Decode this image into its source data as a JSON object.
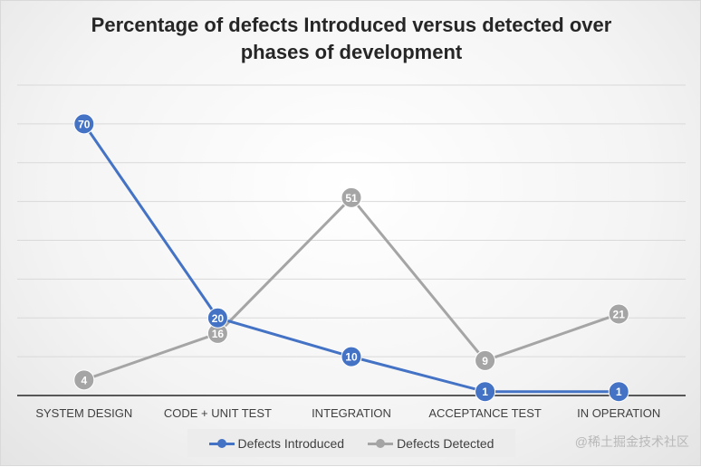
{
  "chart_data": {
    "type": "line",
    "title": "Percentage of defects Introduced versus detected over phases of development",
    "title_lines": [
      "Percentage of defects Introduced versus detected over",
      "phases of development"
    ],
    "categories": [
      "SYSTEM DESIGN",
      "CODE + UNIT TEST",
      "INTEGRATION",
      "ACCEPTANCE TEST",
      "IN OPERATION"
    ],
    "ylim": [
      0,
      80
    ],
    "ygrid_step": 10,
    "grid": true,
    "legend_position": "bottom",
    "series": [
      {
        "name": "Defects Introduced",
        "color": "#4472C4",
        "values": [
          70,
          20,
          10,
          1,
          1
        ]
      },
      {
        "name": "Defects Detected",
        "color": "#A5A5A5",
        "values": [
          4,
          16,
          51,
          9,
          21
        ]
      }
    ]
  },
  "watermark": "@稀土掘金技术社区"
}
